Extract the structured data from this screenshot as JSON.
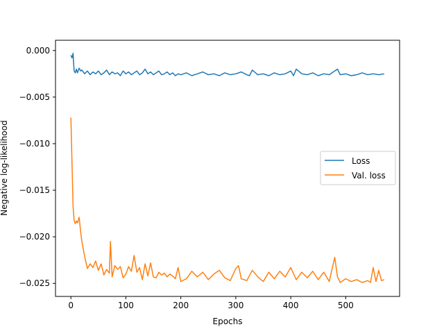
{
  "chart_data": {
    "type": "line",
    "title": "",
    "xlabel": "Epochs",
    "ylabel": "Negative log-likelihood",
    "xlim": [
      -28,
      598
    ],
    "ylim": [
      -0.0264,
      0.0011
    ],
    "xticks": [
      0,
      100,
      200,
      300,
      400,
      500
    ],
    "xtick_labels": [
      "0",
      "100",
      "200",
      "300",
      "400",
      "500"
    ],
    "yticks": [
      0.0,
      -0.005,
      -0.01,
      -0.015,
      -0.02,
      -0.025
    ],
    "ytick_labels": [
      "0.000",
      "−0.005",
      "−0.010",
      "−0.015",
      "−0.020",
      "−0.025"
    ],
    "grid": false,
    "legend": {
      "position": "center-right",
      "entries": [
        "Loss",
        "Val. loss"
      ]
    },
    "series": [
      {
        "name": "Loss",
        "color": "#1f77b4",
        "x": [
          0,
          2,
          4,
          5,
          6,
          8,
          10,
          12,
          15,
          18,
          20,
          25,
          30,
          35,
          40,
          45,
          50,
          55,
          60,
          65,
          70,
          75,
          80,
          85,
          90,
          95,
          100,
          105,
          110,
          115,
          120,
          125,
          130,
          135,
          140,
          145,
          150,
          155,
          160,
          165,
          170,
          175,
          180,
          185,
          190,
          195,
          200,
          210,
          220,
          230,
          240,
          250,
          260,
          270,
          280,
          290,
          300,
          310,
          320,
          325,
          330,
          340,
          350,
          360,
          370,
          380,
          390,
          400,
          405,
          410,
          420,
          430,
          440,
          450,
          460,
          470,
          480,
          485,
          490,
          500,
          510,
          520,
          530,
          540,
          550,
          560,
          570
        ],
        "y": [
          -0.0005,
          -0.0008,
          -0.0003,
          -0.0014,
          -0.0022,
          -0.0024,
          -0.002,
          -0.0024,
          -0.0019,
          -0.0022,
          -0.0021,
          -0.0025,
          -0.0022,
          -0.0026,
          -0.0023,
          -0.0025,
          -0.0022,
          -0.0026,
          -0.0024,
          -0.0021,
          -0.0026,
          -0.0023,
          -0.0025,
          -0.0024,
          -0.0027,
          -0.0022,
          -0.0025,
          -0.0023,
          -0.0026,
          -0.0024,
          -0.0022,
          -0.0026,
          -0.0024,
          -0.002,
          -0.0025,
          -0.0023,
          -0.0026,
          -0.0024,
          -0.0022,
          -0.0026,
          -0.0025,
          -0.0023,
          -0.0026,
          -0.0024,
          -0.0027,
          -0.0025,
          -0.0026,
          -0.0024,
          -0.0027,
          -0.0025,
          -0.0023,
          -0.0026,
          -0.0025,
          -0.0027,
          -0.0024,
          -0.0026,
          -0.0025,
          -0.0023,
          -0.0026,
          -0.0027,
          -0.0021,
          -0.0026,
          -0.0025,
          -0.0027,
          -0.0024,
          -0.0026,
          -0.0025,
          -0.0022,
          -0.0027,
          -0.002,
          -0.0025,
          -0.0026,
          -0.0024,
          -0.0027,
          -0.0025,
          -0.0026,
          -0.0022,
          -0.002,
          -0.0026,
          -0.0025,
          -0.0027,
          -0.0026,
          -0.0024,
          -0.0026,
          -0.0025,
          -0.0026,
          -0.0025
        ]
      },
      {
        "name": "Val. loss",
        "color": "#ff7f0e",
        "x": [
          0,
          2,
          4,
          6,
          8,
          10,
          12,
          15,
          18,
          20,
          25,
          30,
          35,
          40,
          45,
          50,
          55,
          60,
          65,
          70,
          72,
          75,
          80,
          85,
          90,
          95,
          100,
          105,
          110,
          115,
          120,
          125,
          130,
          135,
          140,
          145,
          150,
          155,
          160,
          165,
          170,
          175,
          180,
          185,
          190,
          195,
          200,
          210,
          220,
          230,
          240,
          250,
          260,
          270,
          280,
          290,
          300,
          305,
          310,
          320,
          330,
          340,
          350,
          360,
          370,
          380,
          390,
          400,
          410,
          420,
          430,
          440,
          450,
          460,
          470,
          480,
          485,
          490,
          500,
          510,
          520,
          530,
          540,
          545,
          550,
          555,
          560,
          565,
          570
        ],
        "y": [
          -0.0072,
          -0.012,
          -0.0168,
          -0.0183,
          -0.0186,
          -0.0183,
          -0.0185,
          -0.0179,
          -0.0196,
          -0.0205,
          -0.0221,
          -0.0234,
          -0.0229,
          -0.0233,
          -0.0226,
          -0.0236,
          -0.0229,
          -0.0241,
          -0.0235,
          -0.0239,
          -0.0205,
          -0.0243,
          -0.0231,
          -0.0235,
          -0.0232,
          -0.0244,
          -0.024,
          -0.0232,
          -0.0237,
          -0.022,
          -0.0238,
          -0.0233,
          -0.0246,
          -0.0229,
          -0.0242,
          -0.0228,
          -0.0243,
          -0.0244,
          -0.0238,
          -0.0241,
          -0.0239,
          -0.0243,
          -0.024,
          -0.0242,
          -0.0245,
          -0.0233,
          -0.0248,
          -0.0245,
          -0.0237,
          -0.0243,
          -0.0238,
          -0.0246,
          -0.024,
          -0.0236,
          -0.0244,
          -0.0247,
          -0.0234,
          -0.0231,
          -0.0245,
          -0.0247,
          -0.0236,
          -0.0243,
          -0.0248,
          -0.0238,
          -0.0245,
          -0.0237,
          -0.0243,
          -0.0233,
          -0.0246,
          -0.0238,
          -0.0244,
          -0.0237,
          -0.0246,
          -0.0238,
          -0.0248,
          -0.0222,
          -0.0243,
          -0.0249,
          -0.0245,
          -0.0248,
          -0.0246,
          -0.0249,
          -0.0247,
          -0.0249,
          -0.0233,
          -0.0248,
          -0.0236,
          -0.0247,
          -0.0246
        ]
      }
    ]
  }
}
